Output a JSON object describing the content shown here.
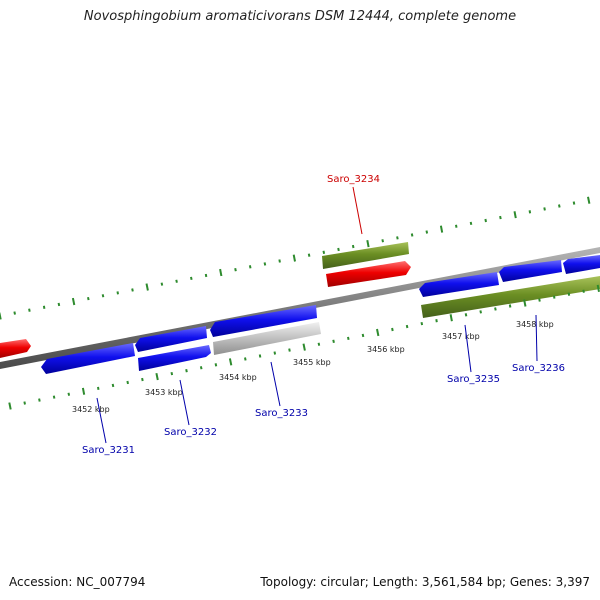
{
  "title": "Novosphingobium aromaticivorans DSM 12444, complete genome",
  "footer": {
    "accession": "Accession: NC_007794",
    "summary": "Topology: circular; Length: 3,561,584 bp; Genes: 3,397"
  },
  "colors": {
    "forward_cds": "#0000ee",
    "reverse_cds": "#0000ee",
    "rna": "#ee0000",
    "pseudo": "#bbbbbb",
    "repeat": "#6b8e23",
    "backbone": "#888888",
    "tick": "#2e8b2e",
    "kbp_text": "#222222",
    "gene_label_blue": "#0000aa",
    "gene_label_red": "#cc0000"
  },
  "scale": {
    "kbp_labels": [
      "3452 kbp",
      "3453 kbp",
      "3454 kbp",
      "3455 kbp",
      "3456 kbp",
      "3457 kbp",
      "3458 kbp"
    ]
  },
  "genes": [
    {
      "label": "Saro_3231",
      "color": "blue"
    },
    {
      "label": "Saro_3232",
      "color": "blue"
    },
    {
      "label": "Saro_3233",
      "color": "blue"
    },
    {
      "label": "Saro_3234",
      "color": "red"
    },
    {
      "label": "Saro_3235",
      "color": "blue"
    },
    {
      "label": "Saro_3236",
      "color": "blue"
    }
  ]
}
